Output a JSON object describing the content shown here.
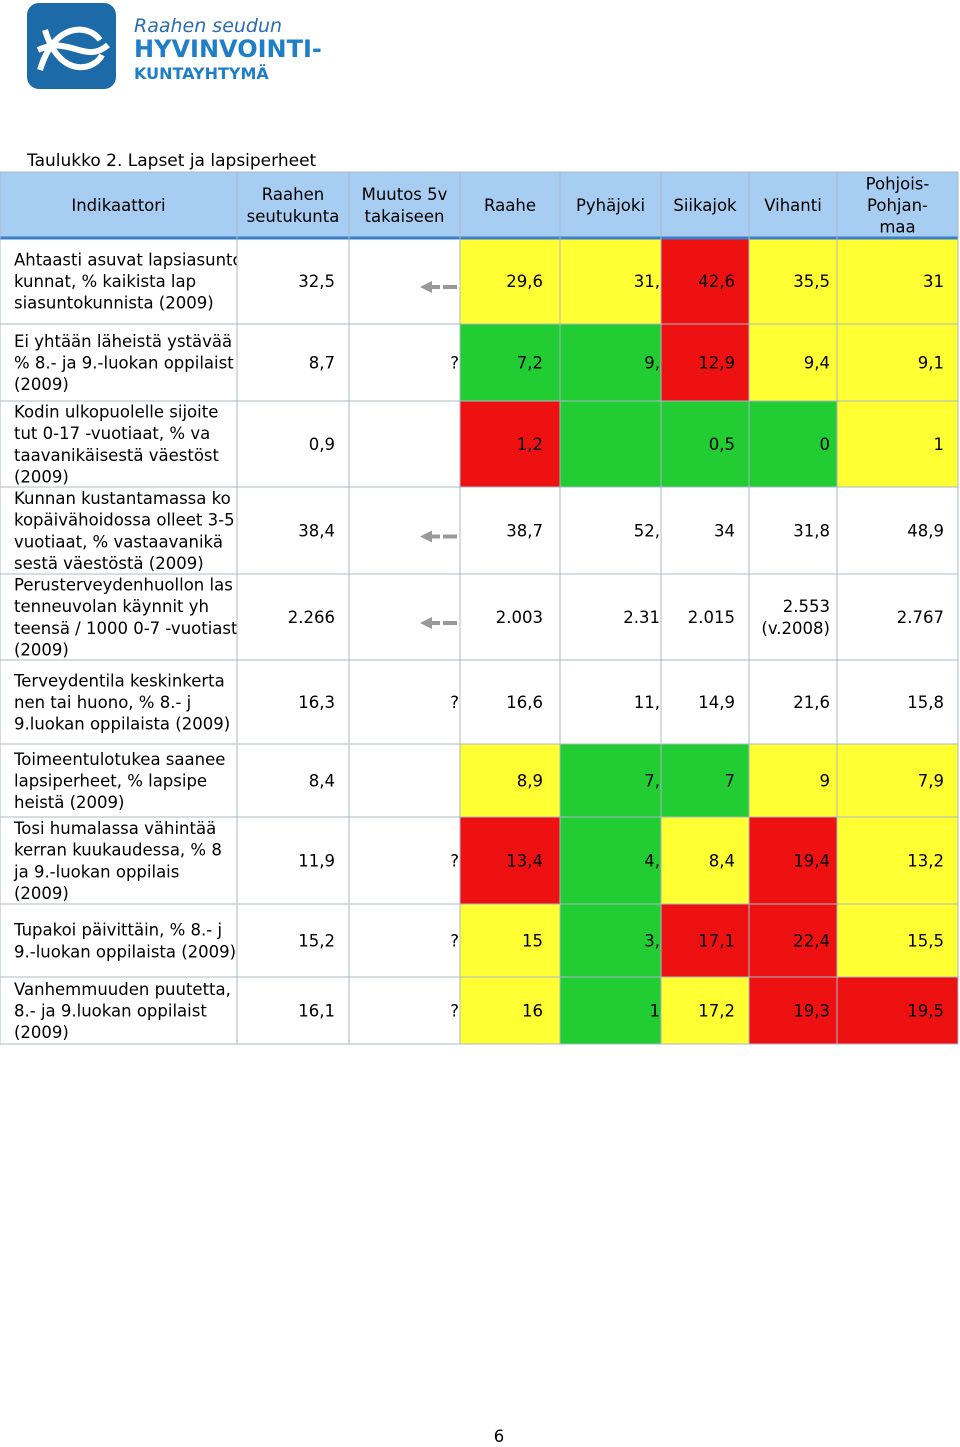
{
  "logo": {
    "line1": "Raahen seudun",
    "line2": "HYVINVOINTI-",
    "line3": "KUNTAYHTYMÄ"
  },
  "table": {
    "title": "Taulukko 2. Lapset ja lapsiperheet",
    "columns": [
      [
        "Indikaattori"
      ],
      [
        "Raahen",
        "seutukunta"
      ],
      [
        "Muutos 5v",
        "takaiseen"
      ],
      [
        "Raahe"
      ],
      [
        "Pyhäjoki"
      ],
      [
        "Siikajok"
      ],
      [
        "Vihanti"
      ],
      [
        "Pohjois-",
        "Pohjan-",
        "maa"
      ]
    ],
    "rows": [
      {
        "indicator": [
          "Ahtaasti asuvat lapsiasunto",
          "kunnat, % kaikista lap",
          "siasuntokunnista (2009)"
        ],
        "values": [
          "32,5",
          null,
          "29,6",
          "31,",
          "42,6",
          "35,5",
          "31"
        ]
      },
      {
        "indicator": [
          "Ei yhtään läheistä ystävää",
          "% 8.- ja 9.-luokan oppilaist",
          "(2009)"
        ],
        "values": [
          "8,7",
          "?",
          "7,2",
          "9,",
          "12,9",
          "9,4",
          "9,1"
        ]
      },
      {
        "indicator": [
          "Kodin ulkopuolelle sijoite",
          "tut 0-17 -vuotiaat, % va",
          "taavanikäisestä väestöst",
          "(2009)"
        ],
        "values": [
          "0,9",
          null,
          "1,2",
          null,
          "0,5",
          "0",
          "1"
        ]
      },
      {
        "indicator": [
          "Kunnan kustantamassa ko",
          "kopäivähoidossa olleet 3-5",
          "vuotiaat, % vastaavanikä",
          "sestä väestöstä (2009)"
        ],
        "values": [
          "38,4",
          null,
          "38,7",
          "52,",
          "34",
          "31,8",
          "48,9"
        ]
      },
      {
        "indicator": [
          "Perusterveydenhuollon las",
          "tenneuvolan käynnit yh",
          "teensä / 1000 0-7 -vuotiast",
          "(2009)"
        ],
        "values": [
          "2.266",
          null,
          "2.003",
          "2.31",
          "2.015",
          [
            "2.553",
            "(v.2008)"
          ],
          "2.767"
        ]
      },
      {
        "indicator": [
          "Terveydentila keskinkerta",
          "nen tai huono, % 8.- j",
          "9.luokan oppilaista (2009)"
        ],
        "values": [
          "16,3",
          "?",
          "16,6",
          "11,",
          "14,9",
          "21,6",
          "15,8"
        ]
      },
      {
        "indicator": [
          "Toimeentulotukea saanee",
          "lapsiperheet, % lapsipe",
          "heistä (2009)"
        ],
        "values": [
          "8,4",
          null,
          "8,9",
          "7,",
          "7",
          "9",
          "7,9"
        ]
      },
      {
        "indicator": [
          "Tosi humalassa vähintää",
          "kerran kuukaudessa, % 8",
          "ja 9.-luokan oppilais",
          "(2009)"
        ],
        "values": [
          "11,9",
          "?",
          "13,4",
          "4,",
          "8,4",
          "19,4",
          "13,2"
        ]
      },
      {
        "indicator": [
          "Tupakoi päivittäin, % 8.- j",
          "9.-luokan oppilaista (2009)"
        ],
        "values": [
          "15,2",
          "?",
          "15",
          "3,",
          "17,1",
          "22,4",
          "15,5"
        ]
      },
      {
        "indicator": [
          "Vanhemmuuden puutetta,",
          "8.- ja 9.luokan oppilaist",
          "(2009)"
        ],
        "values": [
          "16,1",
          "?",
          "16",
          "1",
          "17,2",
          "19,3",
          "19,5"
        ]
      }
    ]
  },
  "page_number": "6"
}
